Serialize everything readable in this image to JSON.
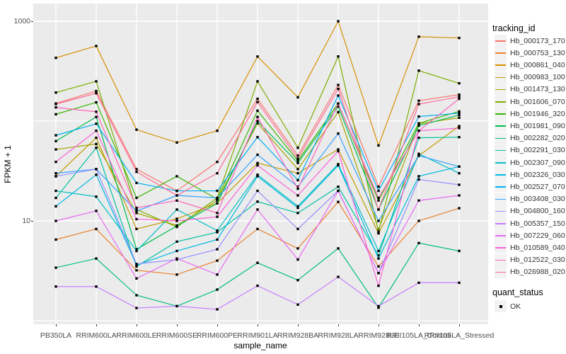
{
  "axes": {
    "x": {
      "title": "sample_name",
      "categories": [
        "PB350LA",
        "RRIM600LA",
        "RRIM600LE",
        "RRIM600SE",
        "RRIM600PE",
        "RRIM901LA",
        "RRIM928BA",
        "RRIM928LA",
        "RRIM928LE",
        "RRII105LA_Control",
        "RRII105LA_Stressed"
      ]
    },
    "y": {
      "title": "FPKM + 1",
      "tick_labels": [
        "1000",
        "10"
      ],
      "tick_values": [
        1000,
        10
      ],
      "gridline_values": [
        1,
        10,
        100,
        1000
      ],
      "scale": "log10"
    }
  },
  "legend": {
    "tracking_title": "tracking_id",
    "quant_title": "quant_status",
    "quant_items": [
      {
        "label": "OK"
      }
    ]
  },
  "colors": {
    "panel_bg": "#EBEBEB",
    "grid": "#FFFFFF",
    "point": "#000000",
    "tick_text": "#4D4D4D",
    "legend_key_bg": "#F2F2F2"
  },
  "chart_data": {
    "type": "line",
    "title": "",
    "xlabel": "sample_name",
    "ylabel": "FPKM + 1",
    "yscale": "log10",
    "ylim": [
      1,
      1200
    ],
    "grid": true,
    "legend_position": "right",
    "marker": "black-square",
    "categories": [
      "PB350LA",
      "RRIM600LA",
      "RRIM600LE",
      "RRIM600SE",
      "RRIM600PE",
      "RRIM901LA",
      "RRIM928BA",
      "RRIM928LA",
      "RRIM928LE",
      "RRII105LA_Control",
      "RRII105LA_Stressed"
    ],
    "series": [
      {
        "name": "Hb_000173_170",
        "color": "#F8766D",
        "quant_status": "OK",
        "values": [
          150,
          200,
          33,
          20,
          39,
          167,
          45,
          230,
          22,
          160,
          184
        ]
      },
      {
        "name": "Hb_000753_130",
        "color": "#EA8331",
        "quant_status": "OK",
        "values": [
          6.5,
          8.3,
          3.2,
          2.9,
          4.0,
          8.3,
          5.3,
          15.5,
          3.5,
          10,
          13.4
        ]
      },
      {
        "name": "Hb_000861_040",
        "color": "#D89000",
        "quant_status": "OK",
        "values": [
          430,
          565,
          82,
          61,
          80,
          443,
          173,
          1000,
          57,
          700,
          680
        ]
      },
      {
        "name": "Hb_000983_100",
        "color": "#C09B00",
        "quant_status": "OK",
        "values": [
          28,
          68,
          8.3,
          10.5,
          15,
          38,
          30,
          52,
          7.5,
          45,
          89
        ]
      },
      {
        "name": "Hb_001473_130",
        "color": "#A3A500",
        "quant_status": "OK",
        "values": [
          52,
          59,
          12,
          9,
          16,
          95,
          33,
          123,
          8.2,
          94,
          108
        ]
      },
      {
        "name": "Hb_001606_070",
        "color": "#7CAE00",
        "quant_status": "OK",
        "values": [
          193,
          250,
          13,
          8.7,
          17,
          250,
          54,
          444,
          7.8,
          320,
          239
        ]
      },
      {
        "name": "Hb_001946_320",
        "color": "#39B600",
        "quant_status": "OK",
        "values": [
          117,
          154,
          17,
          28,
          16.5,
          127,
          40,
          150,
          16,
          95,
          125
        ]
      },
      {
        "name": "Hb_001981_090",
        "color": "#00BB4E",
        "quant_status": "OK",
        "values": [
          63,
          110,
          5.2,
          8.9,
          15,
          100,
          38,
          140,
          13,
          90,
          115
        ]
      },
      {
        "name": "Hb_002282_020",
        "color": "#00BF7D",
        "quant_status": "OK",
        "values": [
          3.4,
          4.2,
          1.8,
          1.4,
          2.05,
          3.8,
          2.55,
          5.3,
          1.35,
          6.0,
          5.0
        ]
      },
      {
        "name": "Hb_002291_030",
        "color": "#00C1A3",
        "quant_status": "OK",
        "values": [
          17,
          54,
          3.5,
          6.2,
          7.7,
          15.6,
          12,
          22,
          4.5,
          68,
          69
        ]
      },
      {
        "name": "Hb_002307_090",
        "color": "#00BFC4",
        "quant_status": "OK",
        "values": [
          20,
          17.5,
          5.0,
          13,
          8.0,
          29,
          14,
          37,
          5.0,
          47,
          30
        ]
      },
      {
        "name": "Hb_002326_030",
        "color": "#00BAE0",
        "quant_status": "OK",
        "values": [
          14,
          29,
          3.6,
          5.0,
          6.5,
          28,
          13.5,
          36,
          4.2,
          28,
          35
        ]
      },
      {
        "name": "Hb_002527_070",
        "color": "#00B0F6",
        "quant_status": "OK",
        "values": [
          72,
          94,
          24,
          20,
          20,
          69,
          25.6,
          180,
          20,
          111,
          120
        ]
      },
      {
        "name": "Hb_003408_030",
        "color": "#35A2FF",
        "quant_status": "OK",
        "values": [
          30,
          33,
          12.5,
          18,
          17,
          46,
          22,
          75,
          10,
          45,
          35
        ]
      },
      {
        "name": "Hb_004800_160",
        "color": "#9590FF",
        "quant_status": "OK",
        "values": [
          28,
          33,
          3.7,
          4.1,
          5.2,
          20,
          8.3,
          20,
          3.0,
          26,
          23
        ]
      },
      {
        "name": "Hb_005357_150",
        "color": "#C77CFF",
        "quant_status": "OK",
        "values": [
          2.2,
          2.2,
          1.34,
          1.4,
          1.3,
          2.24,
          1.45,
          2.75,
          1.4,
          2.4,
          2.4
        ]
      },
      {
        "name": "Hb_007229_060",
        "color": "#E76BF3",
        "quant_status": "OK",
        "values": [
          10,
          12.6,
          2.65,
          4.2,
          2.9,
          13,
          4.1,
          20,
          3.0,
          16,
          18
        ]
      },
      {
        "name": "Hb_010589_040",
        "color": "#FA62DB",
        "quant_status": "OK",
        "values": [
          39,
          80,
          10.4,
          10,
          11,
          36,
          18,
          50,
          2.24,
          80,
          85
        ]
      },
      {
        "name": "Hb_012522_030",
        "color": "#FF62BC",
        "quant_status": "OK",
        "values": [
          137,
          124,
          13.5,
          16,
          12,
          110,
          21,
          150,
          17,
          80,
          167
        ]
      },
      {
        "name": "Hb_026988_020",
        "color": "#FF6A98",
        "quant_status": "OK",
        "values": [
          148,
          190,
          31,
          18,
          30,
          155,
          42,
          210,
          13,
          148,
          175
        ]
      }
    ]
  }
}
